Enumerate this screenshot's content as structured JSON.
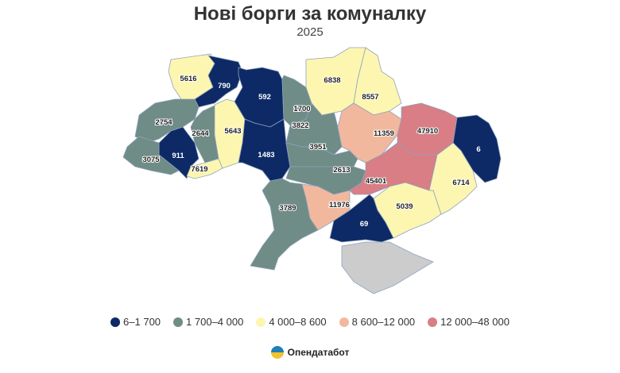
{
  "title": "Нові борги за комуналку",
  "subtitle": "2025",
  "colors": {
    "c1": "#0d2a66",
    "c2": "#6f8c86",
    "c3": "#fdf6b0",
    "c4": "#f2b89e",
    "c5": "#d87e84",
    "nodata": "#cccccc"
  },
  "legend": [
    {
      "label": "6–1 700",
      "cat": "c1"
    },
    {
      "label": "1 700–4 000",
      "cat": "c2"
    },
    {
      "label": "4 000–8 600",
      "cat": "c3"
    },
    {
      "label": "8 600–12 000",
      "cat": "c4"
    },
    {
      "label": "12 000–48 000",
      "cat": "c5"
    }
  ],
  "regions": [
    {
      "value": "5616",
      "cat": "c3"
    },
    {
      "value": "790",
      "cat": "c1"
    },
    {
      "value": "2754",
      "cat": "c2"
    },
    {
      "value": "2644",
      "cat": "c2"
    },
    {
      "value": "911",
      "cat": "c1"
    },
    {
      "value": "3075",
      "cat": "c2"
    },
    {
      "value": "7619",
      "cat": "c3"
    },
    {
      "value": "5643",
      "cat": "c3"
    },
    {
      "value": "592",
      "cat": "c1"
    },
    {
      "value": "1483",
      "cat": "c1"
    },
    {
      "value": "1700",
      "cat": "c2"
    },
    {
      "value": "3822",
      "cat": "c2"
    },
    {
      "value": "3951",
      "cat": "c2"
    },
    {
      "value": "2613",
      "cat": "c2"
    },
    {
      "value": "3789",
      "cat": "c2"
    },
    {
      "value": "11976",
      "cat": "c4"
    },
    {
      "value": "6838",
      "cat": "c3"
    },
    {
      "value": "8557",
      "cat": "c3"
    },
    {
      "value": "11359",
      "cat": "c4"
    },
    {
      "value": "47910",
      "cat": "c5"
    },
    {
      "value": "6",
      "cat": "c1"
    },
    {
      "value": "45401",
      "cat": "c5"
    },
    {
      "value": "6714",
      "cat": "c3"
    },
    {
      "value": "5039",
      "cat": "c3"
    },
    {
      "value": "69",
      "cat": "c1"
    },
    {
      "value": "",
      "cat": "nodata"
    }
  ],
  "brand": "Опендатабот"
}
